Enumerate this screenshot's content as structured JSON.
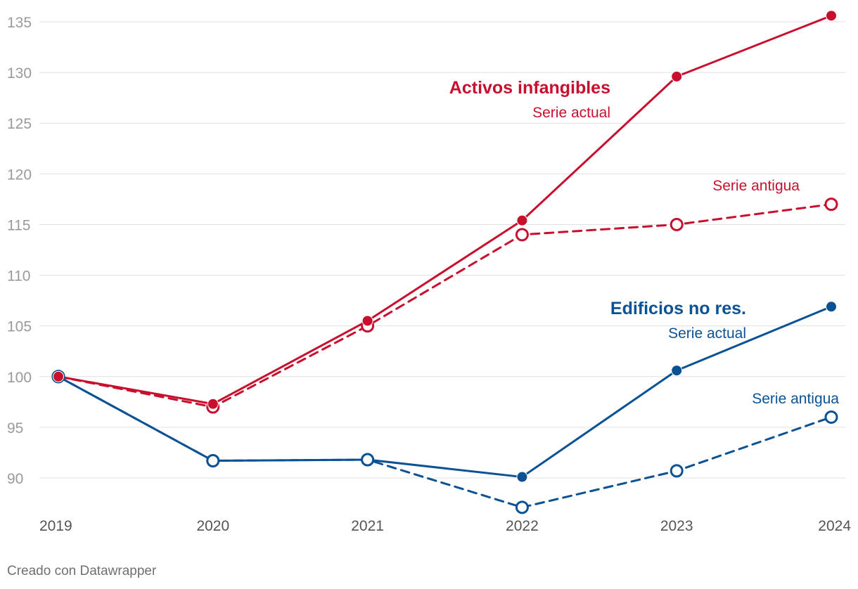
{
  "chart_data": {
    "type": "line",
    "x": [
      "2019",
      "2020",
      "2021",
      "2022",
      "2023",
      "2024"
    ],
    "ylim": [
      87,
      136
    ],
    "yticks": [
      90,
      95,
      100,
      105,
      110,
      115,
      120,
      125,
      130,
      135
    ],
    "series": [
      {
        "key": "intangibles_new",
        "group": "Activos infangibles",
        "name": "Serie actual",
        "color": "#c8102e",
        "dashed": false,
        "marker": "filled",
        "values": [
          100,
          97.3,
          105.5,
          115.4,
          129.6,
          135.6
        ]
      },
      {
        "key": "intangibles_old",
        "group": "Activos infangibles",
        "name": "Serie antigua",
        "color": "#c8102e",
        "dashed": true,
        "marker": "open",
        "values": [
          100,
          97.0,
          105.0,
          114.0,
          115.0,
          117.0
        ]
      },
      {
        "key": "buildings_new",
        "group": "Edificios no res.",
        "name": "Serie actual",
        "color": "#0a5294",
        "dashed": false,
        "marker": "filled",
        "values": [
          100,
          91.7,
          91.8,
          90.1,
          100.6,
          106.9
        ]
      },
      {
        "key": "buildings_old",
        "group": "Edificios no res.",
        "name": "Serie antigua",
        "color": "#0a5294",
        "dashed": true,
        "marker": "open",
        "values": [
          100,
          91.7,
          91.8,
          87.1,
          90.7,
          96.0
        ]
      }
    ],
    "annotations": {
      "red_title": "Activos infangibles",
      "red_actual": "Serie actual",
      "red_old": "Serie antigua",
      "blue_title": "Edificios no res.",
      "blue_actual": "Serie actual",
      "blue_old": "Serie antigua"
    },
    "open_markers_at": {
      "buildings_new": [
        0,
        1,
        2
      ]
    }
  },
  "footer": {
    "credit": "Creado con Datawrapper"
  },
  "colors": {
    "red": "#c8102e",
    "blue": "#0a5294"
  }
}
